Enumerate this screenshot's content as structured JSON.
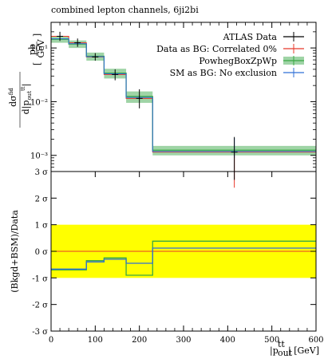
{
  "chart_data": {
    "type": "line",
    "title": "combined lepton channels, 6ji2bi",
    "xlabel": "|p_out^tt| [GeV]",
    "xlim": [
      0,
      600
    ],
    "x_ticks": [
      "0",
      "100",
      "200",
      "300",
      "400",
      "500",
      "600"
    ],
    "bin_edges": [
      0,
      40,
      80,
      120,
      170,
      230,
      600
    ],
    "top_panel": {
      "ylabel": "dσ^fid / d|p_out^tt| [pb/GeV]",
      "yscale": "log",
      "ylim": [
        0.0005,
        0.3
      ],
      "y_ticks": [
        "10⁻³",
        "10⁻²",
        "10⁻¹"
      ],
      "legend_position": "top-right",
      "series": [
        {
          "name": "ATLAS Data",
          "color": "#000000",
          "kind": "points",
          "x": [
            20,
            60,
            100,
            145,
            200,
            415
          ],
          "values": [
            0.165,
            0.125,
            0.068,
            0.032,
            0.0115,
            0.00115
          ],
          "err_low": [
            0.135,
            0.105,
            0.058,
            0.025,
            0.0075,
            0.00035
          ],
          "err_high": [
            0.2,
            0.15,
            0.08,
            0.04,
            0.017,
            0.0022
          ]
        },
        {
          "name": "Data as BG: Correlated 0%",
          "color": "#e8382a",
          "kind": "step",
          "values": [
            0.165,
            0.125,
            0.068,
            0.032,
            0.0115,
            0.00115
          ],
          "x_marker": 415,
          "err_low": 0.00025,
          "err_high": 0.0013
        },
        {
          "name": "PowhegBoxZpWp",
          "color": "#3aa843",
          "band_color": "#9fd4a6",
          "kind": "step-band",
          "values": [
            0.145,
            0.118,
            0.07,
            0.034,
            0.0125,
            0.00125
          ],
          "band_low": [
            0.125,
            0.1,
            0.058,
            0.027,
            0.0095,
            0.001
          ],
          "band_high": [
            0.165,
            0.138,
            0.082,
            0.041,
            0.0155,
            0.0015
          ]
        },
        {
          "name": "SM as BG: No exclusion",
          "color": "#2f6fd6",
          "kind": "step",
          "values": [
            0.148,
            0.12,
            0.069,
            0.033,
            0.012,
            0.00118
          ],
          "x_marker": 415,
          "err_low": 0.0009,
          "err_high": 0.0021
        }
      ]
    },
    "bottom_panel": {
      "ylabel": "(Bkgd+BSM)/Data",
      "ylim": [
        -3,
        3
      ],
      "y_ticks": [
        "-3 σ",
        "-2 σ",
        "-1 σ",
        "0 σ",
        "1 σ",
        "2 σ",
        "3 σ"
      ],
      "band": {
        "color": "#ffff00",
        "low": -1,
        "high": 1
      },
      "zero_line_color": "#e8382a",
      "series": [
        {
          "name": "PowhegBoxZpWp",
          "color": "#3aa843",
          "values": [
            -0.7,
            -0.7,
            -0.35,
            -0.25,
            -0.9,
            0.38
          ]
        },
        {
          "name": "SM as BG: No exclusion",
          "color": "#2f6fd6",
          "values": [
            -0.67,
            -0.67,
            -0.4,
            -0.3,
            -0.45,
            0.12
          ]
        }
      ]
    }
  }
}
